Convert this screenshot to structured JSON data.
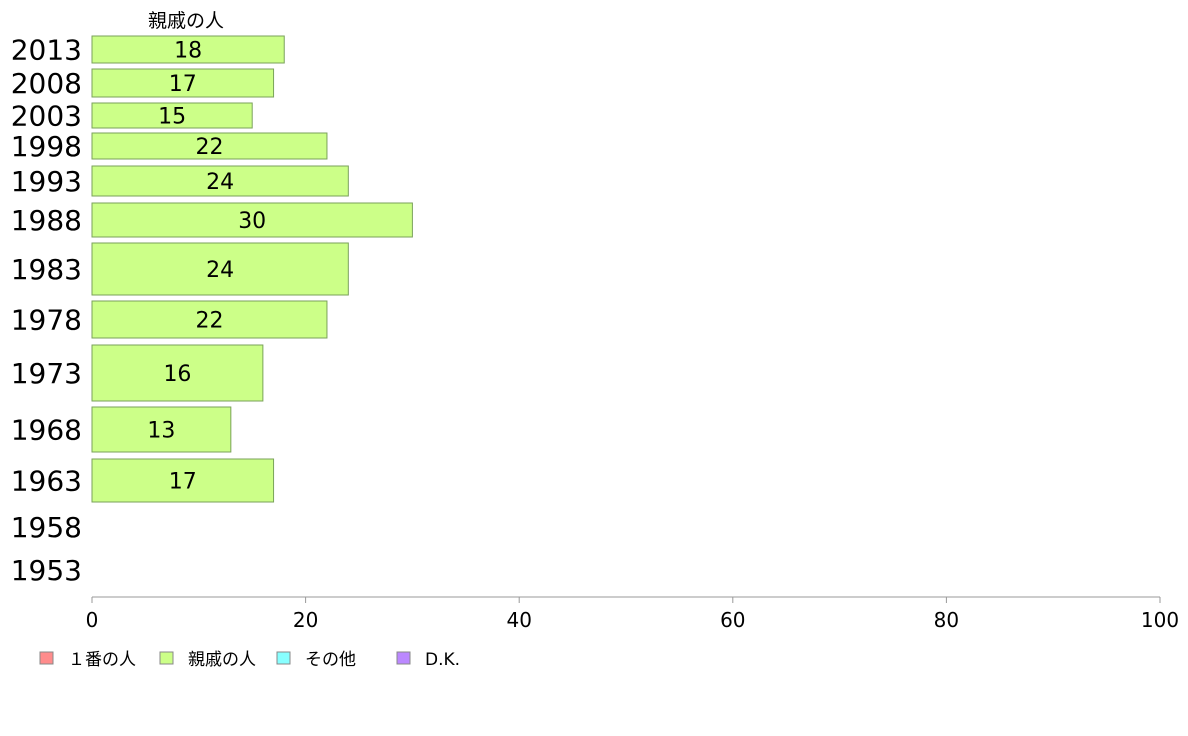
{
  "chart_data": {
    "type": "bar",
    "orientation": "horizontal",
    "variable_bar_height": true,
    "series_label": "親戚の人",
    "categories": [
      "2013",
      "2008",
      "2003",
      "1998",
      "1993",
      "1988",
      "1983",
      "1978",
      "1973",
      "1968",
      "1963",
      "1958",
      "1953"
    ],
    "series": [
      {
        "name": "親戚の人",
        "color": "#ccff88",
        "values": [
          18,
          17,
          15,
          22,
          24,
          30,
          24,
          22,
          16,
          13,
          17,
          null,
          null
        ]
      }
    ],
    "xlim": [
      0,
      100
    ],
    "xticks": [
      0,
      20,
      40,
      60,
      80,
      100
    ],
    "grid": false,
    "legend": {
      "position": "bottom-left",
      "items": [
        {
          "label": "１番の人",
          "color": "#ff8c8c"
        },
        {
          "label": "親戚の人",
          "color": "#ccff88"
        },
        {
          "label": "その他",
          "color": "#88ffff"
        },
        {
          "label": "D.K.",
          "color": "#bb88ff"
        }
      ]
    }
  }
}
